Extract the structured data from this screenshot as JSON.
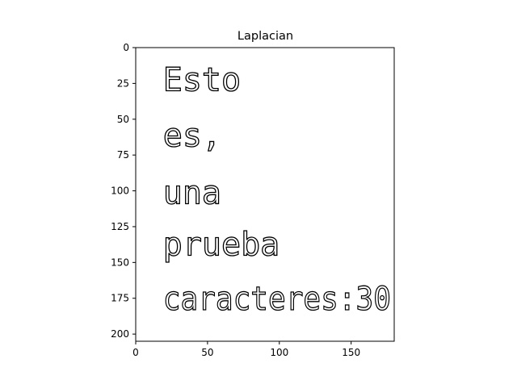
{
  "chart_data": {
    "type": "image",
    "title": "Laplacian",
    "xlim": [
      0,
      180
    ],
    "ylim": [
      205,
      0
    ],
    "x_ticks": [
      0,
      50,
      100,
      150
    ],
    "y_ticks": [
      0,
      25,
      50,
      75,
      100,
      125,
      150,
      175,
      200
    ],
    "image_text_lines": [
      "Esto",
      "es,",
      "una",
      "prueba",
      "caracteres:30"
    ],
    "image_text_baselines": [
      30,
      69,
      109,
      145,
      183
    ],
    "image_text_x_start": 19,
    "colors": {
      "background": "#ffffff",
      "edges": "#000000"
    }
  }
}
